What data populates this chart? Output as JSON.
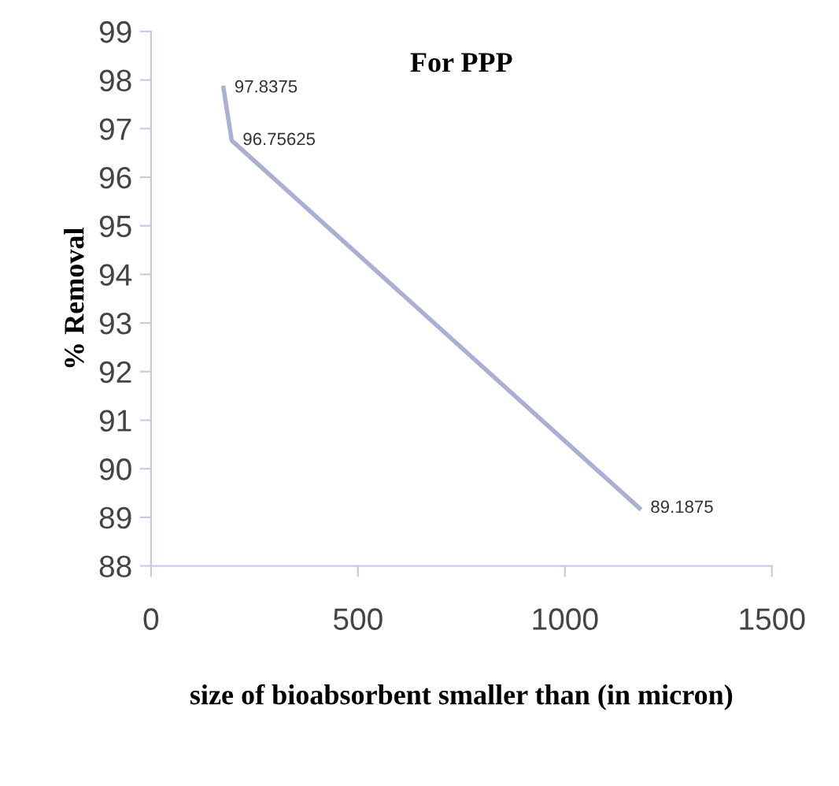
{
  "chart_data": {
    "type": "line",
    "title": "For PPP",
    "xlabel": "size of bioabsorbent smaller than (in micron)",
    "ylabel": "% Removal",
    "x": [
      175,
      195,
      1180
    ],
    "series": [
      {
        "color": "#aab0d4",
        "values": [
          97.8375,
          96.75625,
          89.1875
        ]
      }
    ],
    "data_labels": true,
    "xlim": [
      0,
      1500
    ],
    "xticks": [
      0,
      500,
      1000,
      1500
    ],
    "ylim": [
      88,
      99
    ],
    "yticks": [
      88,
      89,
      90,
      91,
      92,
      93,
      94,
      95,
      96,
      97,
      98,
      99
    ],
    "grid": false,
    "marker": "none",
    "line_style": "solid"
  }
}
